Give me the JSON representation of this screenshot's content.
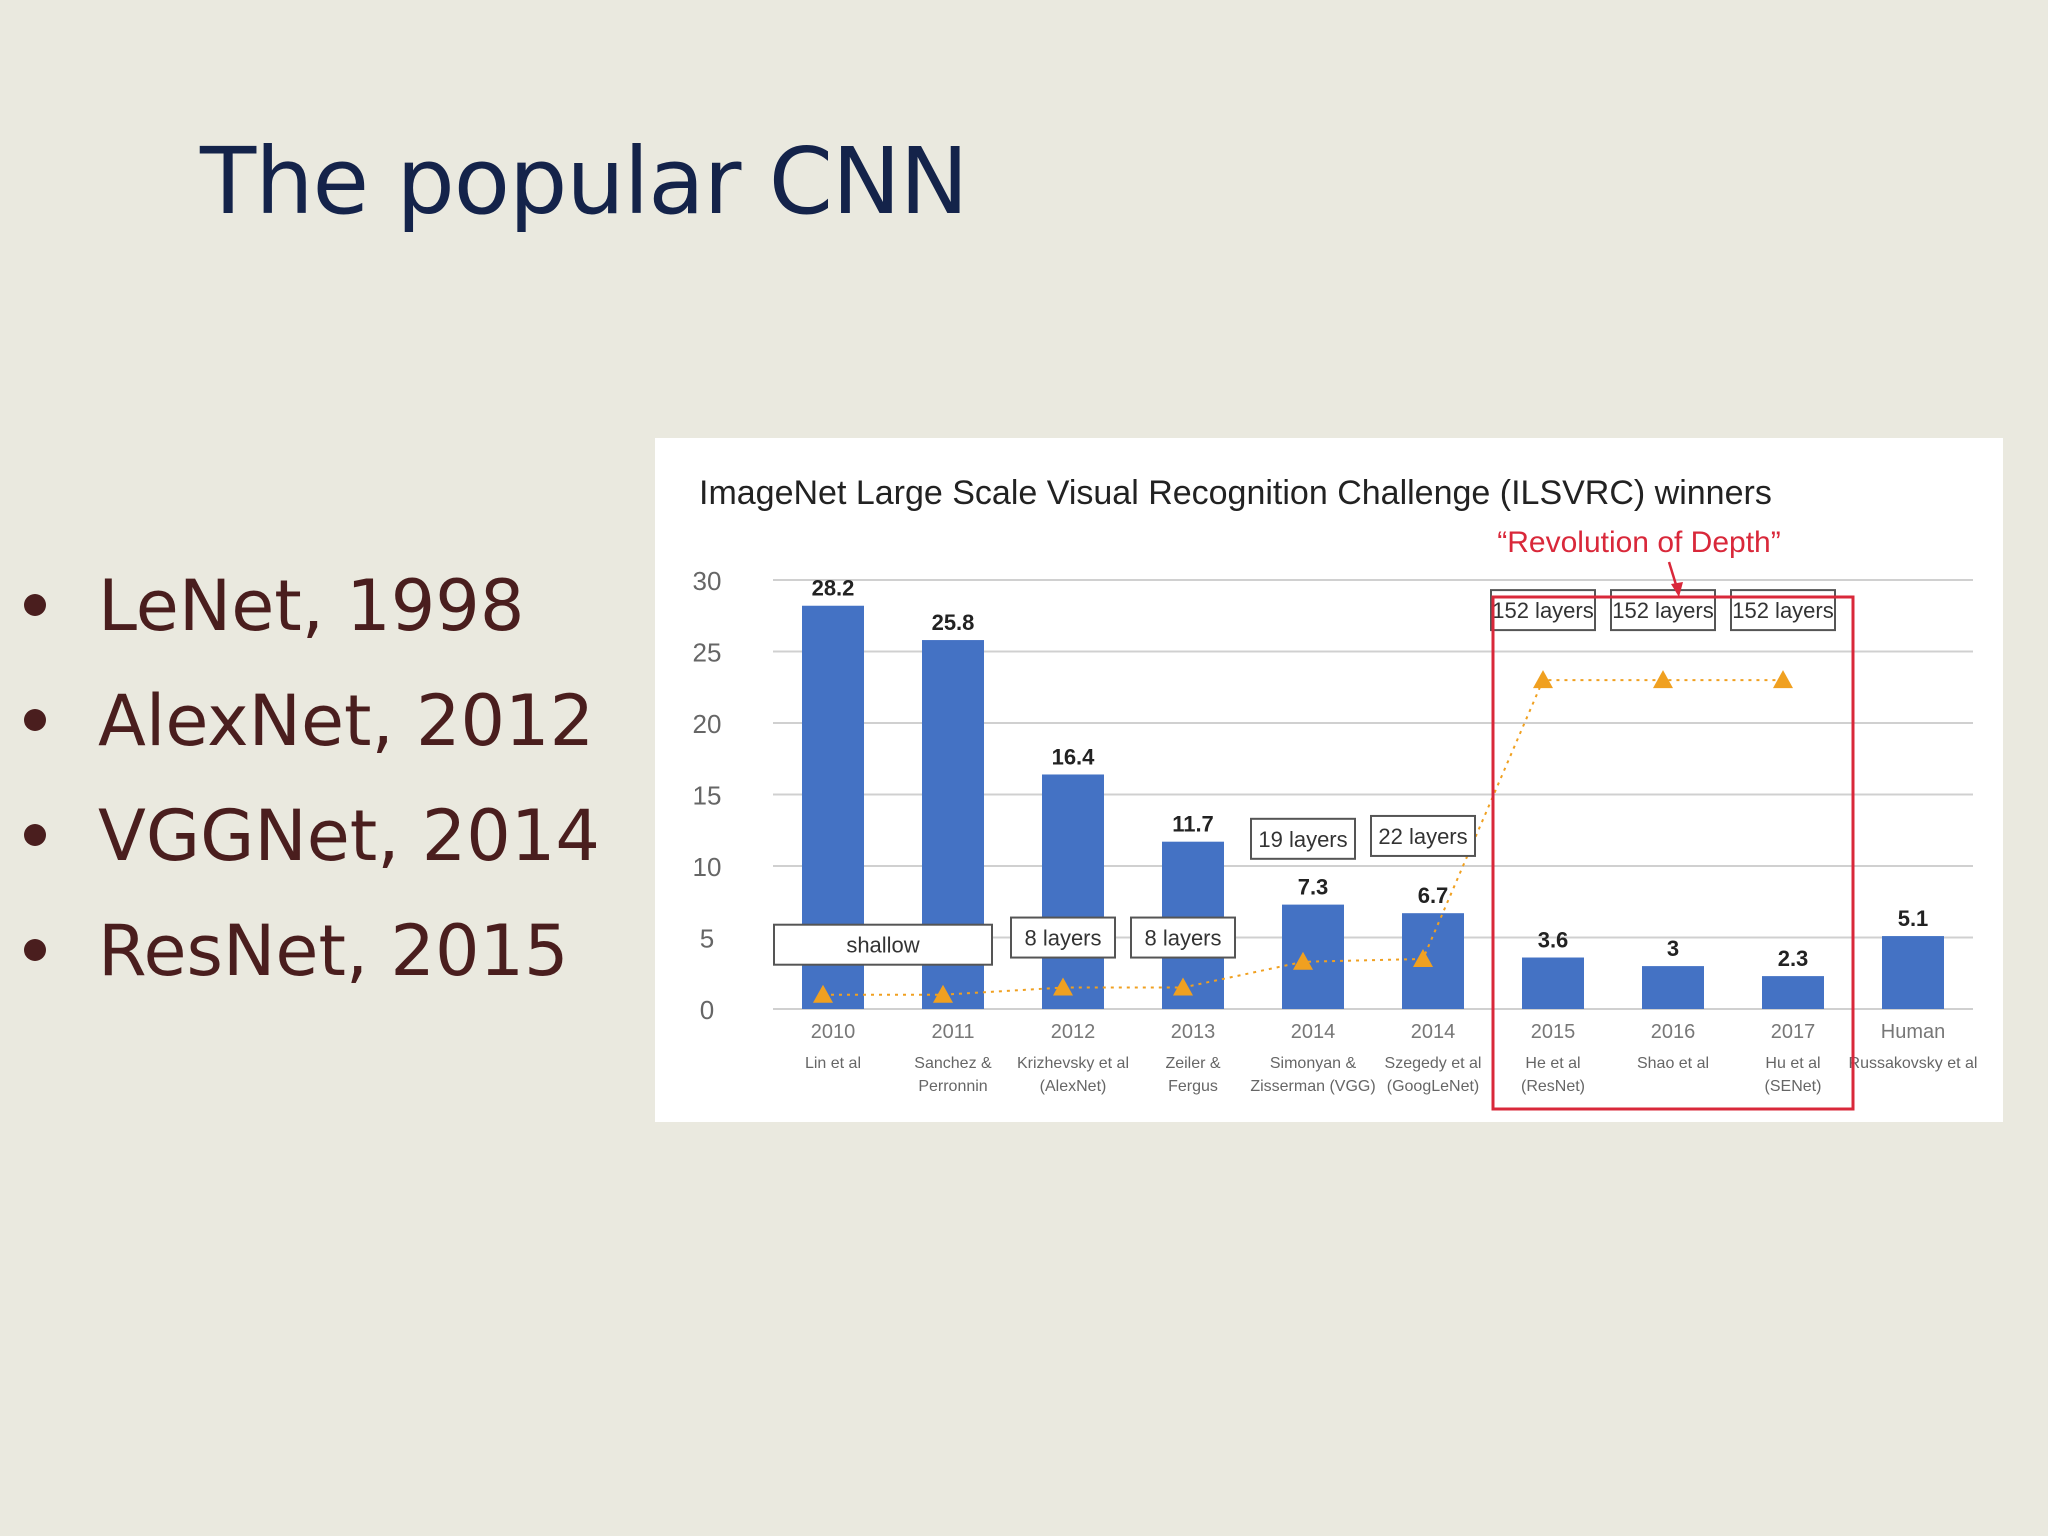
{
  "slide": {
    "title": "The popular CNN",
    "bullets": [
      "LeNet, 1998",
      "AlexNet, 2012",
      "VGGNet, 2014",
      "ResNet, 2015"
    ]
  },
  "colors": {
    "background": "#eae9df",
    "title": "#14234a",
    "bullet_text": "#4a1e1e",
    "bar": "#4472c4",
    "depth_marker": "#f0a020",
    "highlight": "#d9283a"
  },
  "chart_data": {
    "type": "bar",
    "title": "ImageNet Large Scale Visual Recognition Challenge (ILSVRC) winners",
    "annotation": "“Revolution of Depth”",
    "categories": [
      "2010",
      "2011",
      "2012",
      "2013",
      "2014",
      "2014",
      "2015",
      "2016",
      "2017",
      "Human"
    ],
    "authors": [
      [
        "Lin et al"
      ],
      [
        "Sanchez &",
        "Perronnin"
      ],
      [
        "Krizhevsky et al",
        "(AlexNet)"
      ],
      [
        "Zeiler &",
        "Fergus"
      ],
      [
        "Simonyan &",
        "Zisserman (VGG)"
      ],
      [
        "Szegedy et al",
        "(GoogLeNet)"
      ],
      [
        "He et al",
        "(ResNet)"
      ],
      [
        "Shao et al"
      ],
      [
        "Hu et al",
        "(SENet)"
      ],
      [
        "Russakovsky et al"
      ]
    ],
    "values": [
      28.2,
      25.8,
      16.4,
      11.7,
      7.3,
      6.7,
      3.6,
      3,
      2.3,
      5.1
    ],
    "value_labels": [
      "28.2",
      "25.8",
      "16.4",
      "11.7",
      "7.3",
      "6.7",
      "3.6",
      "3",
      "2.3",
      "5.1"
    ],
    "depth_trend": {
      "marker": "triangle",
      "values": [
        1,
        1,
        1.5,
        1.5,
        3.3,
        3.5,
        23,
        23,
        23
      ]
    },
    "layer_labels": [
      {
        "text": "shallow",
        "categories": [
          0,
          1
        ]
      },
      {
        "text": "8 layers",
        "categories": [
          2
        ]
      },
      {
        "text": "8 layers",
        "categories": [
          3
        ]
      },
      {
        "text": "19 layers",
        "categories": [
          4
        ]
      },
      {
        "text": "22 layers",
        "categories": [
          5
        ]
      },
      {
        "text": "152 layers",
        "categories": [
          6
        ]
      },
      {
        "text": "152 layers",
        "categories": [
          7
        ]
      },
      {
        "text": "152 layers",
        "categories": [
          8
        ]
      }
    ],
    "highlight_categories": [
      6,
      8
    ],
    "ylim": [
      0,
      30
    ],
    "yticks": [
      0,
      5,
      10,
      15,
      20,
      25,
      30
    ],
    "grid": true,
    "xlabel": "",
    "ylabel": ""
  }
}
